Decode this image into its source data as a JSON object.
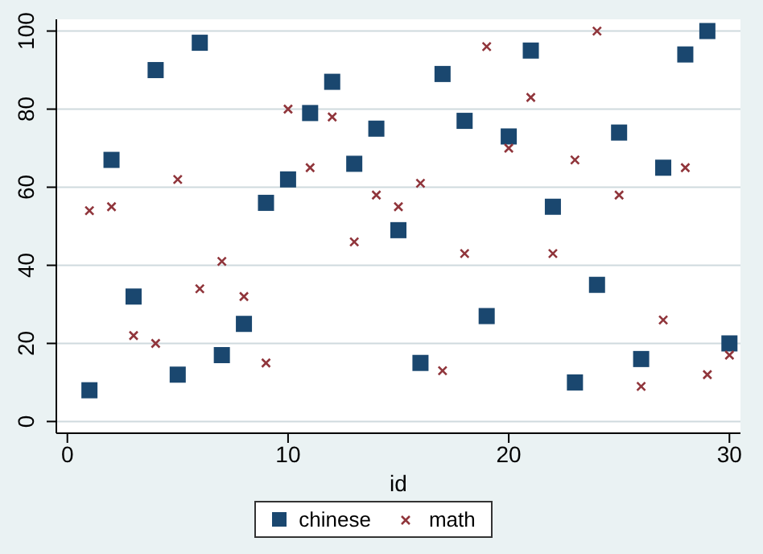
{
  "chart_data": {
    "type": "scatter",
    "xlabel": "id",
    "x": [
      1,
      2,
      3,
      4,
      5,
      6,
      7,
      8,
      9,
      10,
      11,
      12,
      13,
      14,
      15,
      16,
      17,
      18,
      19,
      20,
      21,
      22,
      23,
      24,
      25,
      26,
      27,
      28,
      29,
      30
    ],
    "series": [
      {
        "name": "chinese",
        "color": "#1a476f",
        "marker": "square",
        "values": [
          8,
          67,
          32,
          90,
          12,
          97,
          17,
          25,
          56,
          62,
          79,
          87,
          66,
          75,
          49,
          15,
          89,
          77,
          27,
          73,
          95,
          55,
          10,
          35,
          74,
          16,
          65,
          94,
          100,
          20
        ]
      },
      {
        "name": "math",
        "color": "#90353b",
        "marker": "cross",
        "values": [
          54,
          55,
          22,
          20,
          62,
          34,
          41,
          32,
          15,
          80,
          65,
          78,
          46,
          58,
          55,
          61,
          13,
          43,
          96,
          70,
          83,
          43,
          67,
          100,
          58,
          9,
          26,
          65,
          12,
          17
        ]
      }
    ],
    "xlim": [
      -0.5,
      30.5
    ],
    "ylim": [
      -3,
      103
    ],
    "xticks": [
      0,
      10,
      20,
      30
    ],
    "yticks": [
      0,
      20,
      40,
      60,
      80,
      100
    ],
    "grid": "y",
    "legend": "bottom"
  }
}
